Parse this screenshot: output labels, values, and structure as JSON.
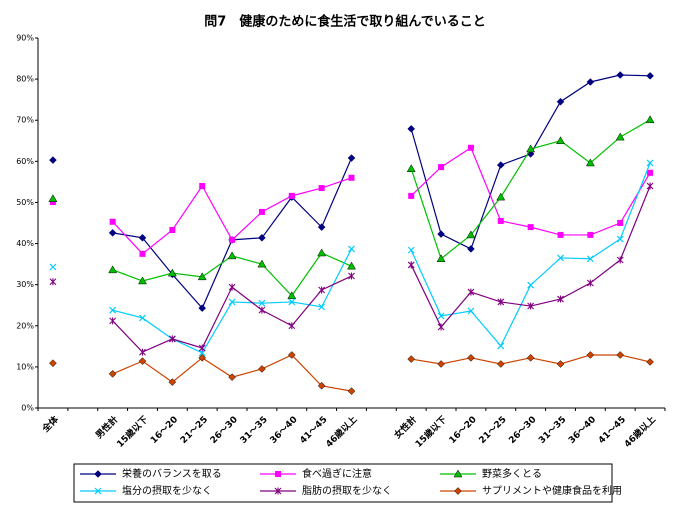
{
  "chart_data": {
    "type": "line",
    "title": "問7　健康のために食生活で取り組んでいること",
    "categories": [
      "全体",
      null,
      "男性計",
      "15歳以下",
      "16～20",
      "21～25",
      "26～30",
      "31～35",
      "36～40",
      "41～45",
      "46歳以上",
      null,
      "女性計",
      "15歳以下",
      "16～20",
      "21～25",
      "26～30",
      "31～35",
      "36～40",
      "41～45",
      "46歳以上"
    ],
    "ylim": [
      0,
      90
    ],
    "yticks": [
      {
        "value": 0,
        "label": "0%"
      },
      {
        "value": 10,
        "label": "10%"
      },
      {
        "value": 20,
        "label": "20%"
      },
      {
        "value": 30,
        "label": "30%"
      },
      {
        "value": 40,
        "label": "40%"
      },
      {
        "value": 50,
        "label": "50%"
      },
      {
        "value": 60,
        "label": "60%"
      },
      {
        "value": 70,
        "label": "70%"
      },
      {
        "value": 80,
        "label": "80%"
      },
      {
        "value": 90,
        "label": "90%"
      }
    ],
    "grid": false,
    "series": [
      {
        "name": "栄養のバランスを取る",
        "color": "#000080",
        "marker": "diamond",
        "values": [
          60.3,
          null,
          42.6,
          41.4,
          32.5,
          24.3,
          40.9,
          41.4,
          51.3,
          44.0,
          60.8,
          null,
          67.9,
          42.3,
          38.7,
          59.1,
          61.8,
          74.5,
          79.3,
          81.0,
          80.8
        ]
      },
      {
        "name": "食べ過ぎに注意",
        "color": "#ff00ff",
        "marker": "square",
        "values": [
          50.1,
          null,
          45.3,
          37.5,
          43.3,
          54.0,
          40.9,
          47.7,
          51.6,
          53.5,
          56.0,
          null,
          51.6,
          58.6,
          63.3,
          45.5,
          44.0,
          42.1,
          42.1,
          45.0,
          57.2
        ]
      },
      {
        "name": "野菜多くとる",
        "color": "#00c000",
        "marker": "triangle",
        "values": [
          50.9,
          null,
          33.6,
          30.9,
          32.8,
          31.9,
          37.0,
          35.0,
          27.3,
          37.7,
          34.5,
          null,
          58.2,
          36.3,
          42.1,
          51.3,
          63.0,
          65.0,
          59.6,
          65.9,
          70.1
        ]
      },
      {
        "name": "塩分の摂取を少なく",
        "color": "#00ccff",
        "marker": "x",
        "values": [
          34.3,
          null,
          23.8,
          21.9,
          16.8,
          13.4,
          25.8,
          25.5,
          25.8,
          24.6,
          38.7,
          null,
          38.4,
          22.4,
          23.6,
          15.1,
          29.9,
          36.5,
          36.3,
          41.1,
          59.6
        ]
      },
      {
        "name": "脂肪の摂取を少なく",
        "color": "#800080",
        "marker": "star",
        "values": [
          30.7,
          null,
          21.2,
          13.6,
          16.8,
          14.6,
          29.4,
          23.8,
          20.0,
          28.7,
          32.1,
          null,
          34.8,
          19.7,
          28.2,
          25.8,
          24.8,
          26.5,
          30.4,
          36.0,
          54.0
        ]
      },
      {
        "name": "サプリメントや健康食品を利用",
        "color": "#cc4400",
        "marker": "diamond2",
        "values": [
          10.9,
          null,
          8.3,
          11.4,
          6.3,
          12.2,
          7.5,
          9.5,
          12.9,
          5.4,
          4.1,
          null,
          11.9,
          10.7,
          12.2,
          10.7,
          12.2,
          10.7,
          12.9,
          12.9,
          11.2
        ]
      }
    ]
  }
}
